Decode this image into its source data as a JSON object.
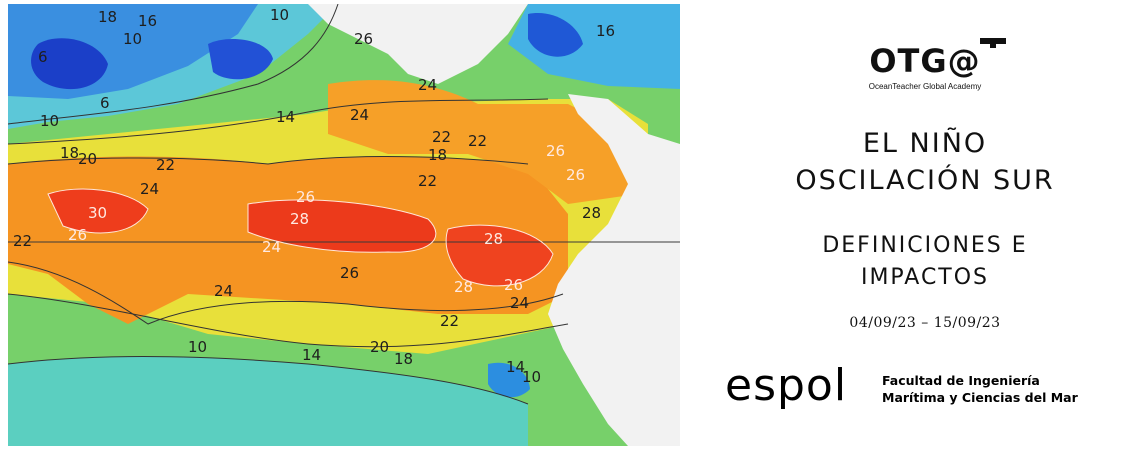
{
  "map": {
    "contour_labels": [
      "18",
      "16",
      "10",
      "10",
      "6",
      "6",
      "10",
      "14",
      "18",
      "20",
      "22",
      "24",
      "26",
      "28",
      "30",
      "26",
      "22",
      "24",
      "26",
      "28",
      "28",
      "26",
      "24",
      "22",
      "20",
      "18",
      "14",
      "10",
      "14",
      "10",
      "26",
      "24",
      "22",
      "22",
      "18",
      "24",
      "26",
      "26",
      "28",
      "16",
      "24",
      "22"
    ]
  },
  "otga": {
    "logo_text": "OTG@",
    "subtitle": "OceanTeacher Global Academy"
  },
  "title": {
    "line1": "EL NIÑO",
    "line2": "OSCILACIÓN SUR"
  },
  "subtitle": {
    "line1": "DEFINICIONES E",
    "line2": "IMPACTOS"
  },
  "dates": "04/09/23 – 15/09/23",
  "espol": {
    "logo_text": "espol",
    "faculty_line1": "Facultad de Ingeniería",
    "faculty_line2": "Marítima y Ciencias del Mar"
  },
  "colors": {
    "blue": "#1f4fd8",
    "cyan": "#3fb5e8",
    "green": "#7ad36a",
    "yellow": "#f0e040",
    "orange": "#f5921e",
    "red": "#ee3a1c",
    "land": "#f2f2f2"
  }
}
